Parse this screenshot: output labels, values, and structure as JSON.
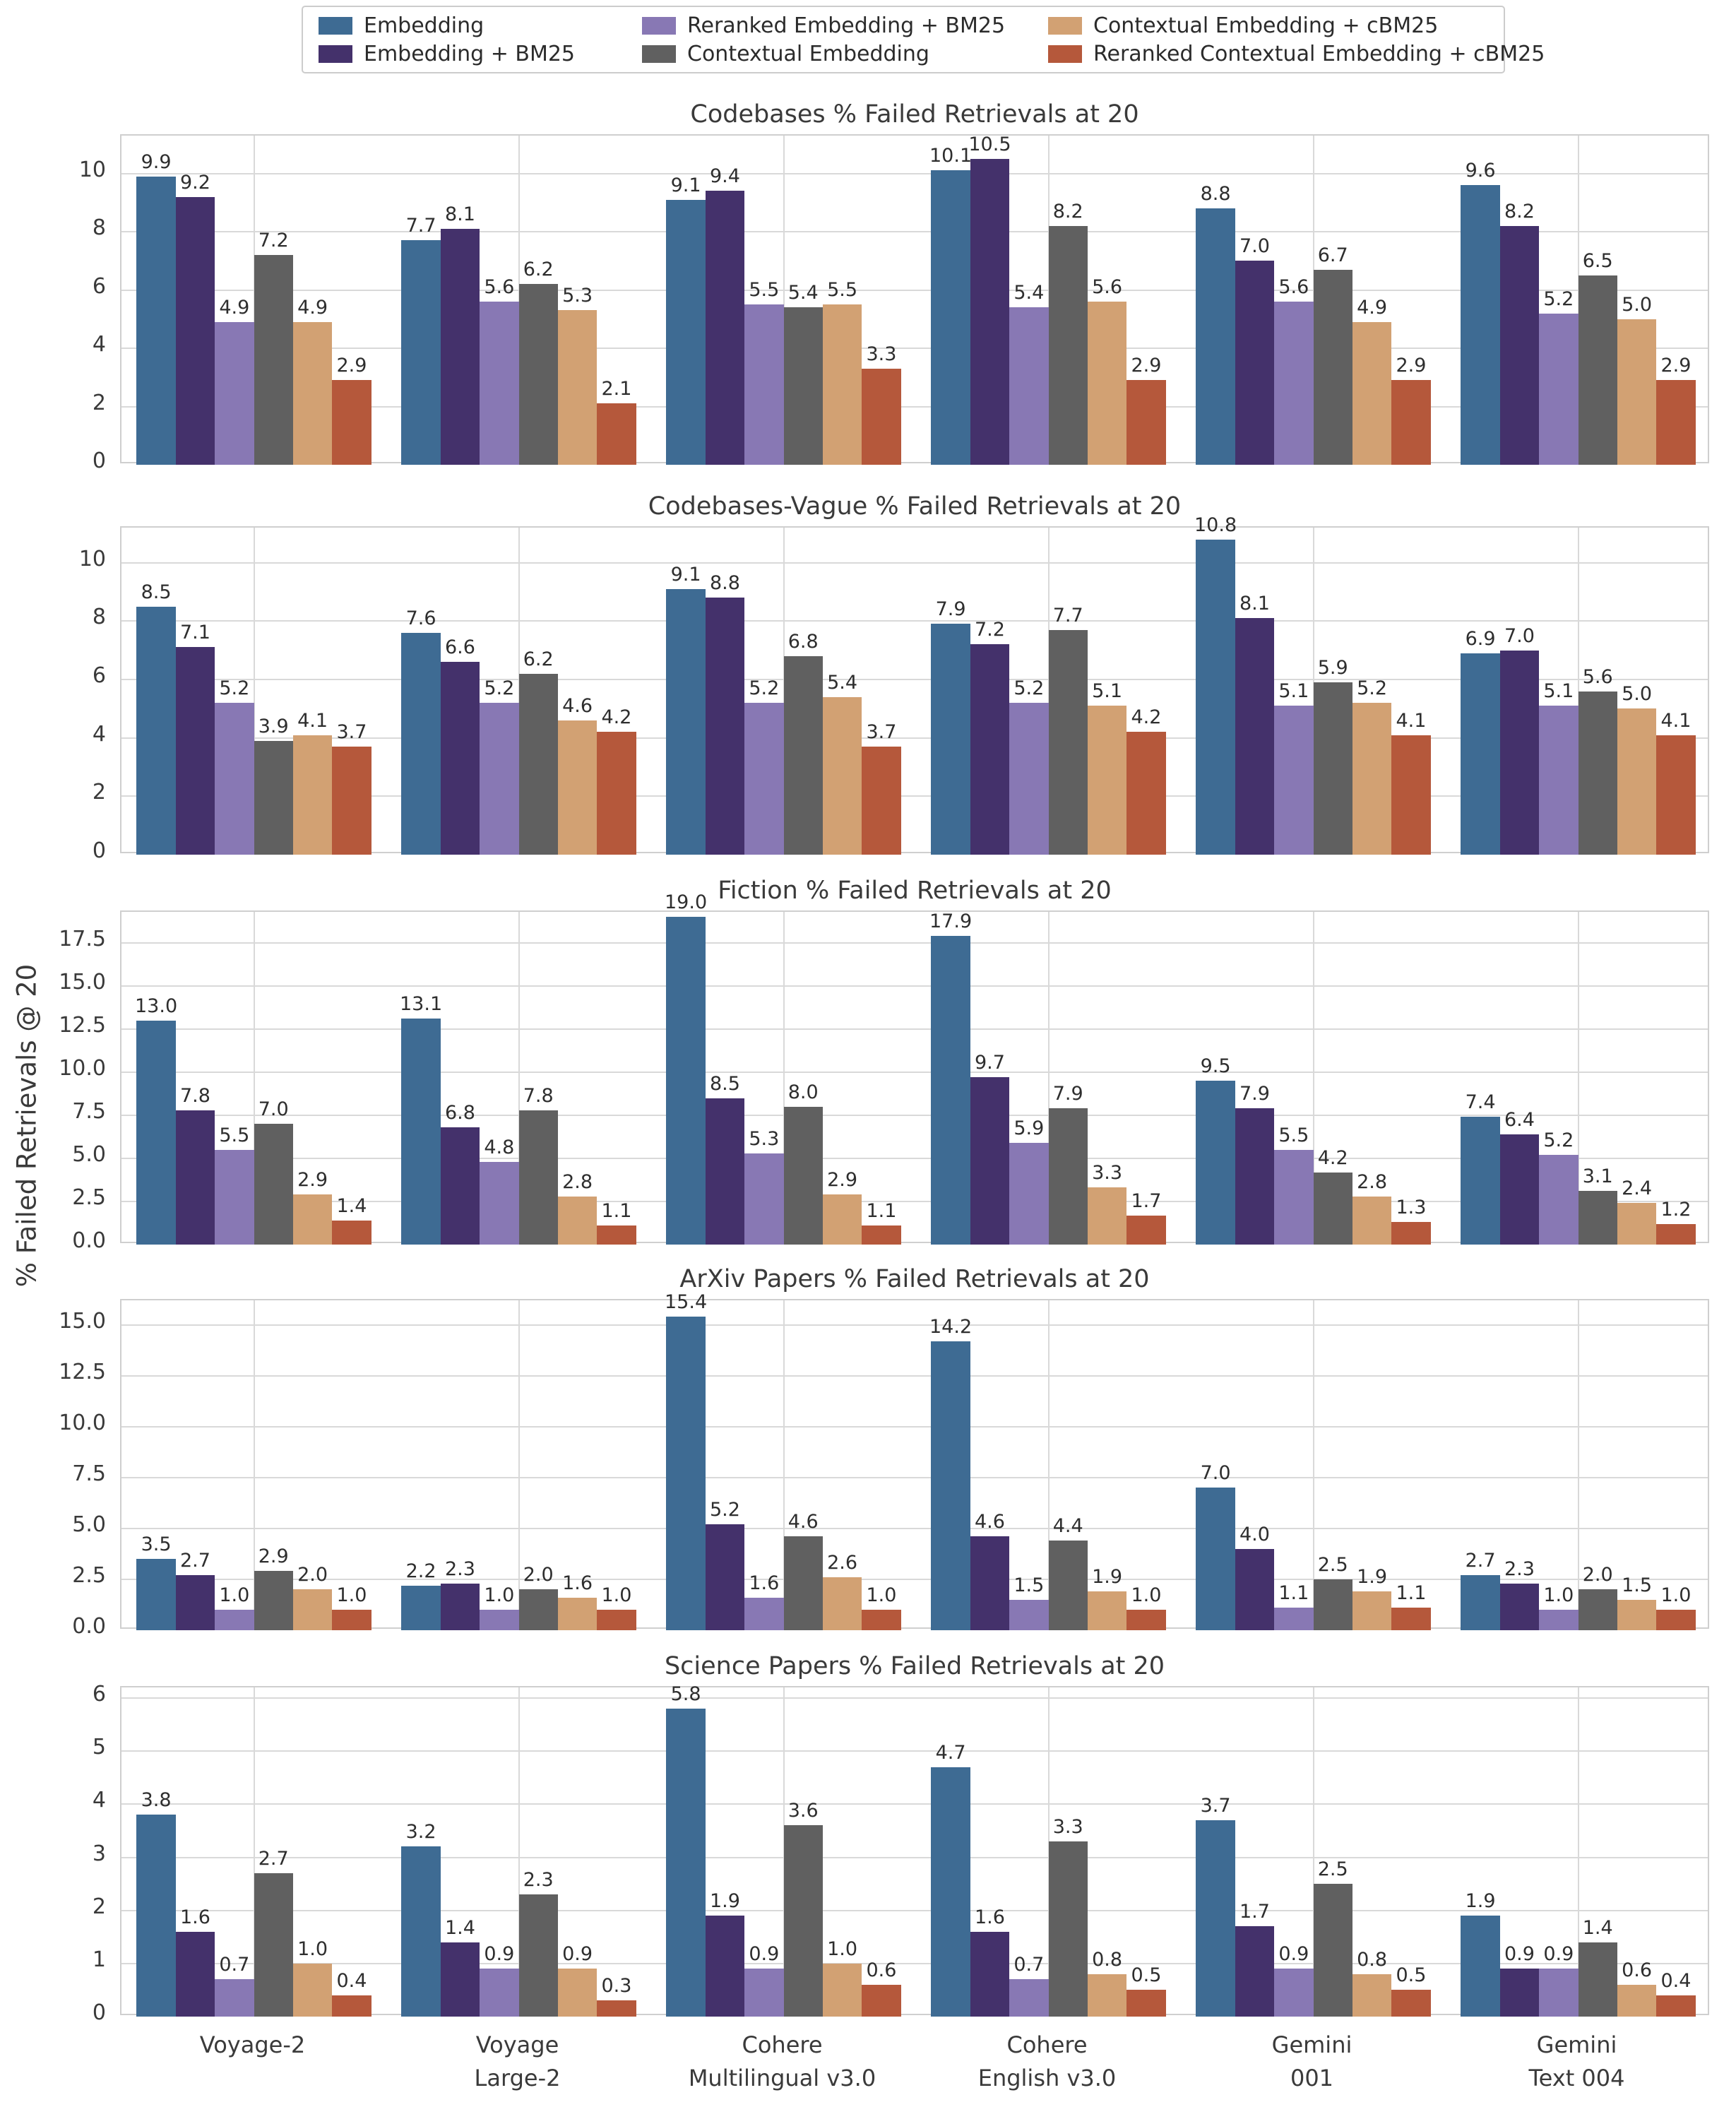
{
  "figure": {
    "ylabel": "% Failed Retrievals @ 20"
  },
  "legend": {
    "layout": "2 rows x 3 columns, column-major",
    "items": [
      {
        "label": "Embedding",
        "color": "#3E6B93"
      },
      {
        "label": "Embedding + BM25",
        "color": "#44316B"
      },
      {
        "label": "Reranked Embedding + BM25",
        "color": "#8878B4"
      },
      {
        "label": "Contextual Embedding",
        "color": "#606060"
      },
      {
        "label": "Contextual Embedding + cBM25",
        "color": "#D2A173"
      },
      {
        "label": "Reranked Contextual Embedding + cBM25",
        "color": "#B5583B"
      }
    ]
  },
  "x_categories": [
    "Voyage-2",
    "Voyage Large-2",
    "Cohere Multilingual v3.0",
    "Cohere English v3.0",
    "Gemini 001",
    "Gemini Text 004"
  ],
  "x_categories_lines": [
    [
      "Voyage-2"
    ],
    [
      "Voyage",
      "Large-2"
    ],
    [
      "Cohere",
      "Multilingual v3.0"
    ],
    [
      "Cohere",
      "English v3.0"
    ],
    [
      "Gemini",
      "001"
    ],
    [
      "Gemini",
      "Text 004"
    ]
  ],
  "chart_data": [
    {
      "type": "bar",
      "title": "Codebases % Failed Retrievals at 20",
      "grid": true,
      "categories": [
        "Voyage-2",
        "Voyage Large-2",
        "Cohere Multilingual v3.0",
        "Cohere English v3.0",
        "Gemini 001",
        "Gemini Text 004"
      ],
      "ylim": [
        0,
        11.3
      ],
      "yticks": [
        0,
        2,
        4,
        6,
        8,
        10
      ],
      "ytick_labels": [
        "0",
        "2",
        "4",
        "6",
        "8",
        "10"
      ],
      "series": [
        {
          "name": "Embedding",
          "values": [
            9.9,
            7.7,
            9.1,
            10.1,
            8.8,
            9.6
          ]
        },
        {
          "name": "Embedding + BM25",
          "values": [
            9.2,
            8.1,
            9.4,
            10.5,
            7.0,
            8.2
          ]
        },
        {
          "name": "Reranked Embedding + BM25",
          "values": [
            4.9,
            5.6,
            5.5,
            5.4,
            5.6,
            5.2
          ]
        },
        {
          "name": "Contextual Embedding",
          "values": [
            7.2,
            6.2,
            5.4,
            8.2,
            6.7,
            6.5
          ]
        },
        {
          "name": "Contextual Embedding + cBM25",
          "values": [
            4.9,
            5.3,
            5.5,
            5.6,
            4.9,
            5.0
          ]
        },
        {
          "name": "Reranked Contextual Embedding + cBM25",
          "values": [
            2.9,
            2.1,
            3.3,
            2.9,
            2.9,
            2.9
          ]
        }
      ]
    },
    {
      "type": "bar",
      "title": "Codebases-Vague % Failed Retrievals at 20",
      "grid": true,
      "categories": [
        "Voyage-2",
        "Voyage Large-2",
        "Cohere Multilingual v3.0",
        "Cohere English v3.0",
        "Gemini 001",
        "Gemini Text 004"
      ],
      "ylim": [
        0,
        11.2
      ],
      "yticks": [
        0,
        2,
        4,
        6,
        8,
        10
      ],
      "ytick_labels": [
        "0",
        "2",
        "4",
        "6",
        "8",
        "10"
      ],
      "series": [
        {
          "name": "Embedding",
          "values": [
            8.5,
            7.6,
            9.1,
            7.9,
            10.8,
            6.9
          ]
        },
        {
          "name": "Embedding + BM25",
          "values": [
            7.1,
            6.6,
            8.8,
            7.2,
            8.1,
            7.0
          ]
        },
        {
          "name": "Reranked Embedding + BM25",
          "values": [
            5.2,
            5.2,
            5.2,
            5.2,
            5.1,
            5.1
          ]
        },
        {
          "name": "Contextual Embedding",
          "values": [
            3.9,
            6.2,
            6.8,
            7.7,
            5.9,
            5.6
          ]
        },
        {
          "name": "Contextual Embedding + cBM25",
          "values": [
            4.1,
            4.6,
            5.4,
            5.1,
            5.2,
            5.0
          ]
        },
        {
          "name": "Reranked Contextual Embedding + cBM25",
          "values": [
            3.7,
            4.2,
            3.7,
            4.2,
            4.1,
            4.1
          ]
        }
      ]
    },
    {
      "type": "bar",
      "title": "Fiction % Failed Retrievals at 20",
      "grid": true,
      "categories": [
        "Voyage-2",
        "Voyage Large-2",
        "Cohere Multilingual v3.0",
        "Cohere English v3.0",
        "Gemini 001",
        "Gemini Text 004"
      ],
      "ylim": [
        0,
        19.3
      ],
      "yticks": [
        0,
        2.5,
        5,
        7.5,
        10,
        12.5,
        15,
        17.5
      ],
      "ytick_labels": [
        "0.0",
        "2.5",
        "5.0",
        "7.5",
        "10.0",
        "12.5",
        "15.0",
        "17.5"
      ],
      "series": [
        {
          "name": "Embedding",
          "values": [
            13.0,
            13.1,
            19.0,
            17.9,
            9.5,
            7.4
          ]
        },
        {
          "name": "Embedding + BM25",
          "values": [
            7.8,
            6.8,
            8.5,
            9.7,
            7.9,
            6.4
          ]
        },
        {
          "name": "Reranked Embedding + BM25",
          "values": [
            5.5,
            4.8,
            5.3,
            5.9,
            5.5,
            5.2
          ]
        },
        {
          "name": "Contextual Embedding",
          "values": [
            7.0,
            7.8,
            8.0,
            7.9,
            4.2,
            3.1
          ]
        },
        {
          "name": "Contextual Embedding + cBM25",
          "values": [
            2.9,
            2.8,
            2.9,
            3.3,
            2.8,
            2.4
          ]
        },
        {
          "name": "Reranked Contextual Embedding + cBM25",
          "values": [
            1.4,
            1.1,
            1.1,
            1.7,
            1.3,
            1.2
          ]
        }
      ]
    },
    {
      "type": "bar",
      "title": "ArXiv Papers % Failed Retrievals at 20",
      "grid": true,
      "categories": [
        "Voyage-2",
        "Voyage Large-2",
        "Cohere Multilingual v3.0",
        "Cohere English v3.0",
        "Gemini 001",
        "Gemini Text 004"
      ],
      "ylim": [
        0,
        16.2
      ],
      "yticks": [
        0,
        2.5,
        5,
        7.5,
        10,
        12.5,
        15
      ],
      "ytick_labels": [
        "0.0",
        "2.5",
        "5.0",
        "7.5",
        "10.0",
        "12.5",
        "15.0"
      ],
      "series": [
        {
          "name": "Embedding",
          "values": [
            3.5,
            2.2,
            15.4,
            14.2,
            7.0,
            2.7
          ]
        },
        {
          "name": "Embedding + BM25",
          "values": [
            2.7,
            2.3,
            5.2,
            4.6,
            4.0,
            2.3
          ]
        },
        {
          "name": "Reranked Embedding + BM25",
          "values": [
            1.0,
            1.0,
            1.6,
            1.5,
            1.1,
            1.0
          ]
        },
        {
          "name": "Contextual Embedding",
          "values": [
            2.9,
            2.0,
            4.6,
            4.4,
            2.5,
            2.0
          ]
        },
        {
          "name": "Contextual Embedding + cBM25",
          "values": [
            2.0,
            1.6,
            2.6,
            1.9,
            1.9,
            1.5
          ]
        },
        {
          "name": "Reranked Contextual Embedding + cBM25",
          "values": [
            1.0,
            1.0,
            1.0,
            1.0,
            1.1,
            1.0
          ]
        }
      ]
    },
    {
      "type": "bar",
      "title": "Science Papers % Failed Retrievals at 20",
      "grid": true,
      "categories": [
        "Voyage-2",
        "Voyage Large-2",
        "Cohere Multilingual v3.0",
        "Cohere English v3.0",
        "Gemini 001",
        "Gemini Text 004"
      ],
      "ylim": [
        0,
        6.2
      ],
      "yticks": [
        0,
        1,
        2,
        3,
        4,
        5,
        6
      ],
      "ytick_labels": [
        "0",
        "1",
        "2",
        "3",
        "4",
        "5",
        "6"
      ],
      "series": [
        {
          "name": "Embedding",
          "values": [
            3.8,
            3.2,
            5.8,
            4.7,
            3.7,
            1.9
          ]
        },
        {
          "name": "Embedding + BM25",
          "values": [
            1.6,
            1.4,
            1.9,
            1.6,
            1.7,
            0.9
          ]
        },
        {
          "name": "Reranked Embedding + BM25",
          "values": [
            0.7,
            0.9,
            0.9,
            0.7,
            0.9,
            0.9
          ]
        },
        {
          "name": "Contextual Embedding",
          "values": [
            2.7,
            2.3,
            3.6,
            3.3,
            2.5,
            1.4
          ]
        },
        {
          "name": "Contextual Embedding + cBM25",
          "values": [
            1.0,
            0.9,
            1.0,
            0.8,
            0.8,
            0.6
          ]
        },
        {
          "name": "Reranked Contextual Embedding + cBM25",
          "values": [
            0.4,
            0.3,
            0.6,
            0.5,
            0.5,
            0.4
          ]
        }
      ]
    }
  ]
}
